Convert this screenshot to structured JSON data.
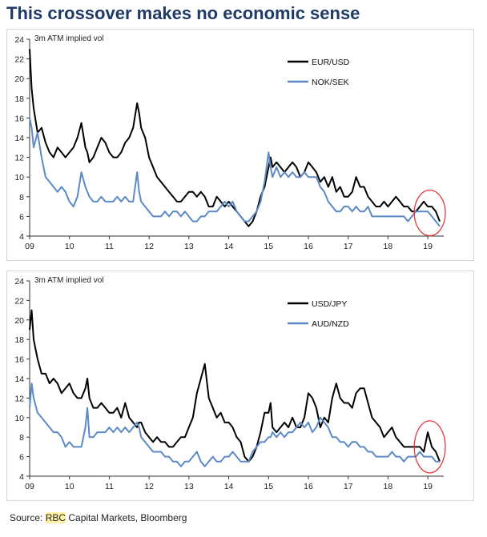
{
  "title": "This crossover makes no economic sense",
  "source": {
    "prefix": "Source: ",
    "highlight": "RBC",
    "suffix": " Capital Markets, Bloomberg"
  },
  "colors": {
    "series_black": "#000000",
    "series_blue": "#5b8ac7",
    "annotation_circle": "#e23a3a"
  },
  "chart_data": [
    {
      "type": "line",
      "ylabel": "3m ATM implied vol",
      "ylim": [
        4,
        24
      ],
      "yticks": [
        "4",
        "6",
        "8",
        "10",
        "12",
        "14",
        "16",
        "18",
        "20",
        "22",
        "24"
      ],
      "xlim": [
        2009,
        2019.4
      ],
      "xticks": [
        "09",
        "10",
        "11",
        "12",
        "13",
        "14",
        "15",
        "16",
        "17",
        "18",
        "19"
      ],
      "legend_position": "top-right",
      "annotation": {
        "type": "circle",
        "x_range": [
          2018.7,
          2019.4
        ],
        "y_range": [
          4.2,
          8.5
        ]
      },
      "series": [
        {
          "name": "EUR/USD",
          "color": "#000000",
          "x": [
            2009.0,
            2009.05,
            2009.1,
            2009.2,
            2009.3,
            2009.4,
            2009.5,
            2009.6,
            2009.7,
            2009.8,
            2009.9,
            2010.0,
            2010.1,
            2010.2,
            2010.3,
            2010.4,
            2010.45,
            2010.5,
            2010.6,
            2010.7,
            2010.8,
            2010.9,
            2011.0,
            2011.1,
            2011.2,
            2011.3,
            2011.4,
            2011.5,
            2011.6,
            2011.7,
            2011.75,
            2011.8,
            2011.9,
            2012.0,
            2012.1,
            2012.2,
            2012.3,
            2012.4,
            2012.5,
            2012.6,
            2012.7,
            2012.8,
            2012.9,
            2013.0,
            2013.1,
            2013.2,
            2013.3,
            2013.4,
            2013.5,
            2013.6,
            2013.7,
            2013.8,
            2013.9,
            2014.0,
            2014.1,
            2014.2,
            2014.3,
            2014.4,
            2014.5,
            2014.6,
            2014.7,
            2014.8,
            2014.9,
            2015.0,
            2015.05,
            2015.1,
            2015.2,
            2015.3,
            2015.4,
            2015.5,
            2015.6,
            2015.7,
            2015.8,
            2015.9,
            2016.0,
            2016.1,
            2016.2,
            2016.3,
            2016.4,
            2016.5,
            2016.6,
            2016.7,
            2016.8,
            2016.9,
            2017.0,
            2017.1,
            2017.2,
            2017.3,
            2017.4,
            2017.5,
            2017.6,
            2017.7,
            2017.8,
            2017.9,
            2018.0,
            2018.1,
            2018.2,
            2018.3,
            2018.4,
            2018.5,
            2018.6,
            2018.7,
            2018.8,
            2018.9,
            2019.0,
            2019.1,
            2019.2,
            2019.3
          ],
          "y": [
            23,
            19,
            17,
            14.5,
            15,
            13.5,
            12.5,
            12,
            13,
            12.5,
            12,
            12.5,
            13,
            14,
            15.5,
            13,
            12.5,
            11.5,
            12,
            13,
            14,
            13.5,
            12.5,
            12,
            12,
            12.5,
            13.5,
            14,
            15,
            17.5,
            16.5,
            15,
            14,
            12,
            11,
            10,
            9.5,
            9,
            8.5,
            8,
            7.5,
            7.5,
            8,
            8.5,
            8.5,
            8,
            8.5,
            8,
            7,
            7,
            8,
            7.5,
            7,
            7.5,
            7,
            6.5,
            6,
            5.5,
            5,
            5.5,
            6.5,
            8,
            9,
            11,
            12,
            11,
            11.5,
            11,
            10.5,
            11,
            11.5,
            11,
            10,
            10.5,
            11.5,
            11,
            10.5,
            9.5,
            10,
            9,
            10,
            8.5,
            9,
            8,
            8,
            8.5,
            10,
            9,
            9,
            8,
            7.5,
            7,
            7,
            7.5,
            7,
            7.5,
            8,
            7.5,
            7,
            7,
            6.5,
            6.5,
            7,
            7.5,
            7,
            7,
            6.5,
            5.5
          ]
        },
        {
          "name": "NOK/SEK",
          "color": "#5b8ac7",
          "x": [
            2009.0,
            2009.05,
            2009.1,
            2009.2,
            2009.3,
            2009.4,
            2009.5,
            2009.6,
            2009.7,
            2009.8,
            2009.9,
            2010.0,
            2010.1,
            2010.2,
            2010.3,
            2010.4,
            2010.45,
            2010.5,
            2010.6,
            2010.7,
            2010.8,
            2010.9,
            2011.0,
            2011.1,
            2011.2,
            2011.3,
            2011.4,
            2011.5,
            2011.6,
            2011.7,
            2011.75,
            2011.8,
            2011.9,
            2012.0,
            2012.1,
            2012.2,
            2012.3,
            2012.4,
            2012.5,
            2012.6,
            2012.7,
            2012.8,
            2012.9,
            2013.0,
            2013.1,
            2013.2,
            2013.3,
            2013.4,
            2013.5,
            2013.6,
            2013.7,
            2013.8,
            2013.9,
            2014.0,
            2014.1,
            2014.2,
            2014.3,
            2014.4,
            2014.5,
            2014.6,
            2014.7,
            2014.8,
            2014.9,
            2015.0,
            2015.05,
            2015.1,
            2015.2,
            2015.3,
            2015.4,
            2015.5,
            2015.6,
            2015.7,
            2015.8,
            2015.9,
            2016.0,
            2016.1,
            2016.2,
            2016.3,
            2016.4,
            2016.5,
            2016.6,
            2016.7,
            2016.8,
            2016.9,
            2017.0,
            2017.1,
            2017.2,
            2017.3,
            2017.4,
            2017.5,
            2017.6,
            2017.7,
            2017.8,
            2017.9,
            2018.0,
            2018.1,
            2018.2,
            2018.3,
            2018.4,
            2018.5,
            2018.6,
            2018.7,
            2018.8,
            2018.9,
            2019.0,
            2019.1,
            2019.2,
            2019.3
          ],
          "y": [
            16,
            15,
            13,
            14.5,
            12,
            10,
            9.5,
            9,
            8.5,
            9,
            8.5,
            7.5,
            7,
            8,
            10.5,
            9,
            8.5,
            8,
            7.5,
            7.5,
            8,
            7.5,
            7.5,
            7.5,
            8,
            7.5,
            8,
            7.5,
            7.5,
            10.5,
            8.5,
            7.5,
            7,
            6.5,
            6,
            6,
            6,
            6.5,
            6,
            6.5,
            6.5,
            6,
            6.5,
            6,
            5.5,
            5.5,
            6,
            6,
            6.5,
            6.5,
            6.5,
            7,
            7.5,
            7,
            7.5,
            6.5,
            6,
            5.5,
            5.5,
            6,
            6.5,
            7.5,
            9.5,
            12.5,
            11,
            10,
            11,
            10,
            10.5,
            10,
            10.5,
            10,
            10,
            10.5,
            10,
            10,
            10,
            9,
            8.5,
            7.5,
            7,
            6.5,
            6.5,
            7,
            7,
            6.5,
            7,
            6.5,
            6.5,
            7,
            6,
            6,
            6,
            6,
            6,
            6,
            6,
            6,
            6,
            5.5,
            6,
            6.5,
            6.5,
            6.5,
            6.5,
            6,
            5.5,
            5
          ]
        }
      ]
    },
    {
      "type": "line",
      "ylabel": "3m ATM implied vol",
      "ylim": [
        4,
        24
      ],
      "yticks": [
        "4",
        "6",
        "8",
        "10",
        "12",
        "14",
        "16",
        "18",
        "20",
        "22",
        "24"
      ],
      "xlim": [
        2009,
        2019.4
      ],
      "xticks": [
        "09",
        "10",
        "11",
        "12",
        "13",
        "14",
        "15",
        "16",
        "17",
        "18",
        "19"
      ],
      "legend_position": "top-right",
      "annotation": {
        "type": "circle",
        "x_range": [
          2018.7,
          2019.4
        ],
        "y_range": [
          4.5,
          9.5
        ]
      },
      "series": [
        {
          "name": "USD/JPY",
          "color": "#000000",
          "x": [
            2009.0,
            2009.05,
            2009.1,
            2009.2,
            2009.3,
            2009.4,
            2009.5,
            2009.6,
            2009.7,
            2009.8,
            2009.9,
            2010.0,
            2010.1,
            2010.2,
            2010.3,
            2010.4,
            2010.45,
            2010.5,
            2010.6,
            2010.7,
            2010.8,
            2010.9,
            2011.0,
            2011.1,
            2011.2,
            2011.3,
            2011.4,
            2011.5,
            2011.6,
            2011.7,
            2011.75,
            2011.8,
            2011.9,
            2012.0,
            2012.1,
            2012.2,
            2012.3,
            2012.4,
            2012.5,
            2012.6,
            2012.7,
            2012.8,
            2012.9,
            2013.0,
            2013.1,
            2013.2,
            2013.3,
            2013.4,
            2013.5,
            2013.6,
            2013.7,
            2013.8,
            2013.9,
            2014.0,
            2014.1,
            2014.2,
            2014.3,
            2014.4,
            2014.5,
            2014.6,
            2014.7,
            2014.8,
            2014.9,
            2015.0,
            2015.05,
            2015.1,
            2015.2,
            2015.3,
            2015.4,
            2015.5,
            2015.6,
            2015.7,
            2015.8,
            2015.9,
            2016.0,
            2016.1,
            2016.2,
            2016.3,
            2016.4,
            2016.5,
            2016.6,
            2016.7,
            2016.8,
            2016.9,
            2017.0,
            2017.1,
            2017.2,
            2017.3,
            2017.4,
            2017.5,
            2017.6,
            2017.7,
            2017.8,
            2017.9,
            2018.0,
            2018.1,
            2018.2,
            2018.3,
            2018.4,
            2018.5,
            2018.6,
            2018.7,
            2018.8,
            2018.9,
            2019.0,
            2019.1,
            2019.2,
            2019.3
          ],
          "y": [
            19,
            21,
            18,
            16,
            14.5,
            14.5,
            13.5,
            14,
            13.5,
            12.5,
            13,
            13.5,
            12.5,
            12,
            12,
            13,
            14,
            12,
            11,
            11,
            11.5,
            11,
            10.5,
            10.5,
            11,
            10,
            11.5,
            10,
            9.5,
            9,
            9.5,
            9.5,
            8.5,
            8,
            7.5,
            8,
            7.5,
            7.5,
            7,
            7,
            7.5,
            8,
            8,
            9,
            10,
            12.5,
            14,
            15.5,
            12,
            11,
            10,
            10.5,
            9.5,
            9.5,
            9,
            8,
            7.5,
            6,
            5.5,
            6,
            7,
            8.5,
            10.5,
            10.5,
            11.5,
            9,
            8.5,
            9,
            9.5,
            9,
            10,
            9,
            9,
            10,
            12.5,
            12,
            11,
            9,
            10,
            9.5,
            12,
            13.5,
            12,
            11.5,
            11.5,
            11,
            12.5,
            13,
            13,
            11.5,
            10,
            9.5,
            9,
            8,
            8.5,
            9,
            8,
            7.5,
            7,
            7,
            7,
            7,
            7,
            6.5,
            8.5,
            7,
            6.5,
            5.5
          ]
        },
        {
          "name": "AUD/NZD",
          "color": "#5b8ac7",
          "x": [
            2009.0,
            2009.05,
            2009.1,
            2009.2,
            2009.3,
            2009.4,
            2009.5,
            2009.6,
            2009.7,
            2009.8,
            2009.9,
            2010.0,
            2010.1,
            2010.2,
            2010.3,
            2010.4,
            2010.45,
            2010.5,
            2010.6,
            2010.7,
            2010.8,
            2010.9,
            2011.0,
            2011.1,
            2011.2,
            2011.3,
            2011.4,
            2011.5,
            2011.6,
            2011.7,
            2011.75,
            2011.8,
            2011.9,
            2012.0,
            2012.1,
            2012.2,
            2012.3,
            2012.4,
            2012.5,
            2012.6,
            2012.7,
            2012.8,
            2012.9,
            2013.0,
            2013.1,
            2013.2,
            2013.3,
            2013.4,
            2013.5,
            2013.6,
            2013.7,
            2013.8,
            2013.9,
            2014.0,
            2014.1,
            2014.2,
            2014.3,
            2014.4,
            2014.5,
            2014.6,
            2014.7,
            2014.8,
            2014.9,
            2015.0,
            2015.05,
            2015.1,
            2015.2,
            2015.3,
            2015.4,
            2015.5,
            2015.6,
            2015.7,
            2015.8,
            2015.9,
            2016.0,
            2016.1,
            2016.2,
            2016.3,
            2016.4,
            2016.5,
            2016.6,
            2016.7,
            2016.8,
            2016.9,
            2017.0,
            2017.1,
            2017.2,
            2017.3,
            2017.4,
            2017.5,
            2017.6,
            2017.7,
            2017.8,
            2017.9,
            2018.0,
            2018.1,
            2018.2,
            2018.3,
            2018.4,
            2018.5,
            2018.6,
            2018.7,
            2018.8,
            2018.9,
            2019.0,
            2019.1,
            2019.2,
            2019.3
          ],
          "y": [
            11,
            13.5,
            12,
            10.5,
            10,
            9.5,
            9,
            8.5,
            8.5,
            8,
            7,
            7.5,
            7,
            7,
            7,
            9,
            11,
            8,
            8,
            8.5,
            8.5,
            8.5,
            9,
            8.5,
            9,
            8.5,
            9,
            8.5,
            9,
            9.5,
            9,
            8,
            7.5,
            7,
            6.5,
            6.5,
            6.5,
            6,
            6,
            5.5,
            5.5,
            5,
            5.5,
            5.5,
            6,
            6.5,
            5.5,
            5,
            5.5,
            6,
            5.5,
            5.5,
            6,
            6,
            6.5,
            6,
            5.5,
            5.5,
            5.5,
            6.5,
            7,
            7.5,
            7.5,
            8,
            8,
            8.5,
            8,
            8.5,
            8,
            8.5,
            8.5,
            9,
            9.5,
            9,
            9.5,
            8.5,
            9,
            10,
            9.5,
            9,
            8,
            8,
            7.5,
            7.5,
            7,
            7.5,
            7.5,
            7,
            7,
            6.5,
            6.5,
            6,
            6,
            6,
            6,
            6.5,
            6,
            6,
            5.5,
            6,
            6,
            6,
            6.5,
            6,
            6,
            6,
            5.5,
            5.5
          ]
        }
      ]
    }
  ]
}
